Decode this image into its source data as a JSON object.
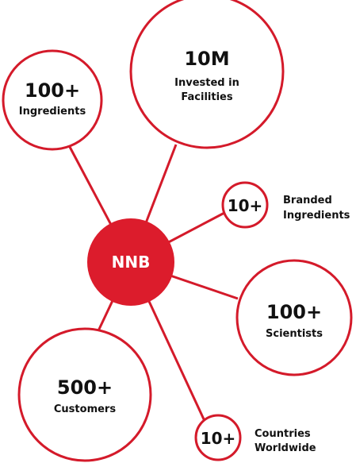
{
  "hub": {
    "label": "NNB"
  },
  "stats": {
    "ingredients": {
      "value": "100+",
      "label": "Ingredients"
    },
    "facilities": {
      "value": "10M",
      "label_line1": "Invested in",
      "label_line2": "Facilities"
    },
    "branded": {
      "value": "10+",
      "label_line1": "Branded",
      "label_line2": "Ingredients"
    },
    "scientists": {
      "value": "100+",
      "label": "Scientists"
    },
    "customers": {
      "value": "500+",
      "label": "Customers"
    },
    "countries": {
      "value": "10+",
      "label_line1": "Countries",
      "label_line2": "Worldwide"
    }
  },
  "colors": {
    "accent": "#d41a2a",
    "text": "#111111",
    "hub_fill": "#dc1c2c"
  }
}
